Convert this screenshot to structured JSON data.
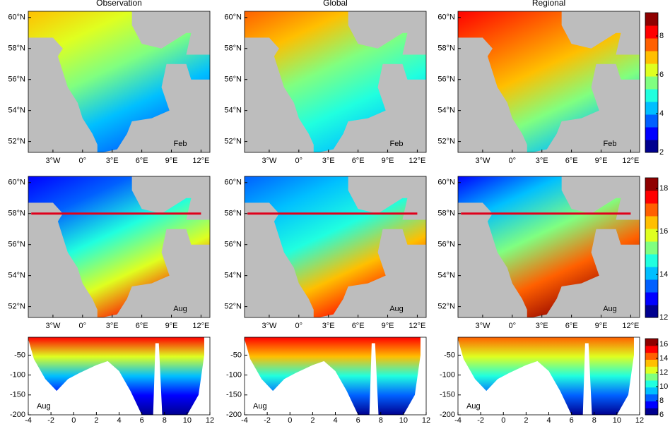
{
  "chart_data": [
    {
      "type": "map",
      "title": "Observation",
      "label": "Feb",
      "xlim": [
        -5.5,
        12.9
      ],
      "ylim": [
        51.3,
        60.4
      ],
      "xticks": [
        {
          "value": -3,
          "label": "3°W"
        },
        {
          "value": 0,
          "label": "0°"
        },
        {
          "value": 3,
          "label": "3°E"
        },
        {
          "value": 6,
          "label": "6°E"
        },
        {
          "value": 9,
          "label": "9°E"
        },
        {
          "value": 12,
          "label": "12°E"
        }
      ],
      "yticks": [
        {
          "value": 52,
          "label": "52°N"
        },
        {
          "value": 54,
          "label": "54°N"
        },
        {
          "value": 56,
          "label": "56°N"
        },
        {
          "value": 58,
          "label": "58°N"
        },
        {
          "value": 60,
          "label": "60°N"
        }
      ]
    },
    {
      "type": "map",
      "title": "Global",
      "label": "Feb",
      "xlim": [
        -5.5,
        12.9
      ],
      "ylim": [
        51.3,
        60.4
      ],
      "xticks": [
        {
          "value": -3,
          "label": "3°W"
        },
        {
          "value": 0,
          "label": "0°"
        },
        {
          "value": 3,
          "label": "3°E"
        },
        {
          "value": 6,
          "label": "6°E"
        },
        {
          "value": 9,
          "label": "9°E"
        },
        {
          "value": 12,
          "label": "12°E"
        }
      ],
      "yticks": [
        {
          "value": 52,
          "label": "52°N"
        },
        {
          "value": 54,
          "label": "54°N"
        },
        {
          "value": 56,
          "label": "56°N"
        },
        {
          "value": 58,
          "label": "58°N"
        },
        {
          "value": 60,
          "label": "60°N"
        }
      ]
    },
    {
      "type": "map",
      "title": "Regional",
      "label": "Feb",
      "xlim": [
        -5.5,
        12.9
      ],
      "ylim": [
        51.3,
        60.4
      ],
      "xticks": [
        {
          "value": -3,
          "label": "3°W"
        },
        {
          "value": 0,
          "label": "0°"
        },
        {
          "value": 3,
          "label": "3°E"
        },
        {
          "value": 6,
          "label": "6°E"
        },
        {
          "value": 9,
          "label": "9°E"
        },
        {
          "value": 12,
          "label": "12°E"
        }
      ],
      "yticks": [
        {
          "value": 52,
          "label": "52°N"
        },
        {
          "value": 54,
          "label": "54°N"
        },
        {
          "value": 56,
          "label": "56°N"
        },
        {
          "value": 58,
          "label": "58°N"
        },
        {
          "value": 60,
          "label": "60°N"
        }
      ],
      "colorbar": {
        "lim": [
          2,
          9.2
        ],
        "ticks": [
          2,
          4,
          6,
          8
        ]
      }
    },
    {
      "type": "map",
      "label": "Aug",
      "transect_lat": 58,
      "xlim": [
        -5.5,
        12.9
      ],
      "ylim": [
        51.3,
        60.4
      ],
      "xticks": [
        {
          "value": -3,
          "label": "3°W"
        },
        {
          "value": 0,
          "label": "0°"
        },
        {
          "value": 3,
          "label": "3°E"
        },
        {
          "value": 6,
          "label": "6°E"
        },
        {
          "value": 9,
          "label": "9°E"
        },
        {
          "value": 12,
          "label": "12°E"
        }
      ],
      "yticks": [
        {
          "value": 52,
          "label": "52°N"
        },
        {
          "value": 54,
          "label": "54°N"
        },
        {
          "value": 56,
          "label": "56°N"
        },
        {
          "value": 58,
          "label": "58°N"
        },
        {
          "value": 60,
          "label": "60°N"
        }
      ]
    },
    {
      "type": "map",
      "label": "Aug",
      "transect_lat": 58,
      "xlim": [
        -5.5,
        12.9
      ],
      "ylim": [
        51.3,
        60.4
      ],
      "xticks": [
        {
          "value": -3,
          "label": "3°W"
        },
        {
          "value": 0,
          "label": "0°"
        },
        {
          "value": 3,
          "label": "3°E"
        },
        {
          "value": 6,
          "label": "6°E"
        },
        {
          "value": 9,
          "label": "9°E"
        },
        {
          "value": 12,
          "label": "12°E"
        }
      ],
      "yticks": [
        {
          "value": 52,
          "label": "52°N"
        },
        {
          "value": 54,
          "label": "54°N"
        },
        {
          "value": 56,
          "label": "56°N"
        },
        {
          "value": 58,
          "label": "58°N"
        },
        {
          "value": 60,
          "label": "60°N"
        }
      ]
    },
    {
      "type": "map",
      "label": "Aug",
      "transect_lat": 58,
      "xlim": [
        -5.5,
        12.9
      ],
      "ylim": [
        51.3,
        60.4
      ],
      "xticks": [
        {
          "value": -3,
          "label": "3°W"
        },
        {
          "value": 0,
          "label": "0°"
        },
        {
          "value": 3,
          "label": "3°E"
        },
        {
          "value": 6,
          "label": "6°E"
        },
        {
          "value": 9,
          "label": "9°E"
        },
        {
          "value": 12,
          "label": "12°E"
        }
      ],
      "yticks": [
        {
          "value": 52,
          "label": "52°N"
        },
        {
          "value": 54,
          "label": "54°N"
        },
        {
          "value": 56,
          "label": "56°N"
        },
        {
          "value": 58,
          "label": "58°N"
        },
        {
          "value": 60,
          "label": "60°N"
        }
      ],
      "colorbar": {
        "lim": [
          12,
          18.5
        ],
        "ticks": [
          12,
          14,
          16,
          18
        ]
      }
    },
    {
      "type": "section",
      "label": "Aug",
      "xlim": [
        -4,
        12
      ],
      "ylim": [
        -200,
        -5
      ],
      "xticks": [
        -4,
        -2,
        0,
        2,
        4,
        6,
        8,
        10,
        12
      ],
      "yticks": [
        -50,
        -100,
        -150,
        -200
      ]
    },
    {
      "type": "section",
      "label": "Aug",
      "xlim": [
        -4,
        12
      ],
      "ylim": [
        -200,
        -5
      ],
      "xticks": [
        -4,
        -2,
        0,
        2,
        4,
        6,
        8,
        10,
        12
      ],
      "yticks": [
        -50,
        -100,
        -150,
        -200
      ]
    },
    {
      "type": "section",
      "label": "Aug",
      "xlim": [
        -4,
        12
      ],
      "ylim": [
        -200,
        -5
      ],
      "xticks": [
        -4,
        -2,
        0,
        2,
        4,
        6,
        8,
        10,
        12
      ],
      "yticks": [
        -50,
        -100,
        -150,
        -200
      ],
      "colorbar": {
        "lim": [
          6,
          16.8
        ],
        "ticks": [
          6,
          8,
          10,
          12,
          14,
          16
        ]
      }
    }
  ]
}
